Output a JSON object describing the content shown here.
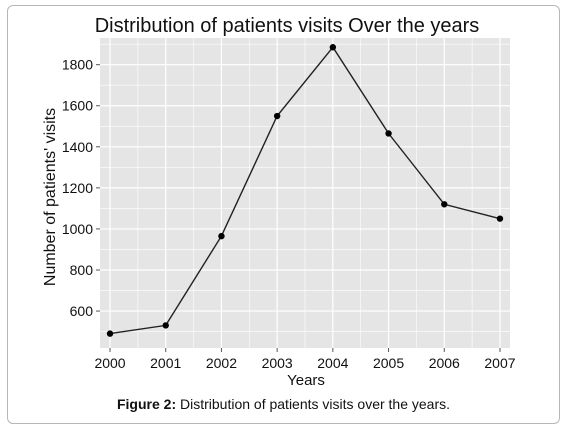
{
  "chart_data": {
    "type": "line",
    "title": "Distribution of patients visits Over the years",
    "xlabel": "Years",
    "ylabel": "Number of patients' visits",
    "x": [
      2000,
      2001,
      2002,
      2003,
      2004,
      2005,
      2006,
      2007
    ],
    "series": [
      {
        "values": [
          490,
          530,
          965,
          1550,
          1885,
          1465,
          1120,
          1050
        ]
      }
    ],
    "yticks": [
      600,
      800,
      1000,
      1200,
      1400,
      1600,
      1800
    ],
    "ylim": [
      420,
      1930
    ],
    "grid": true,
    "colors": {
      "panel": "#e5e5e5",
      "grid": "#ffffff",
      "line": "#222222",
      "point": "#000000"
    }
  },
  "caption": {
    "label": "Figure 2:",
    "text": " Distribution of patients visits over the years."
  }
}
